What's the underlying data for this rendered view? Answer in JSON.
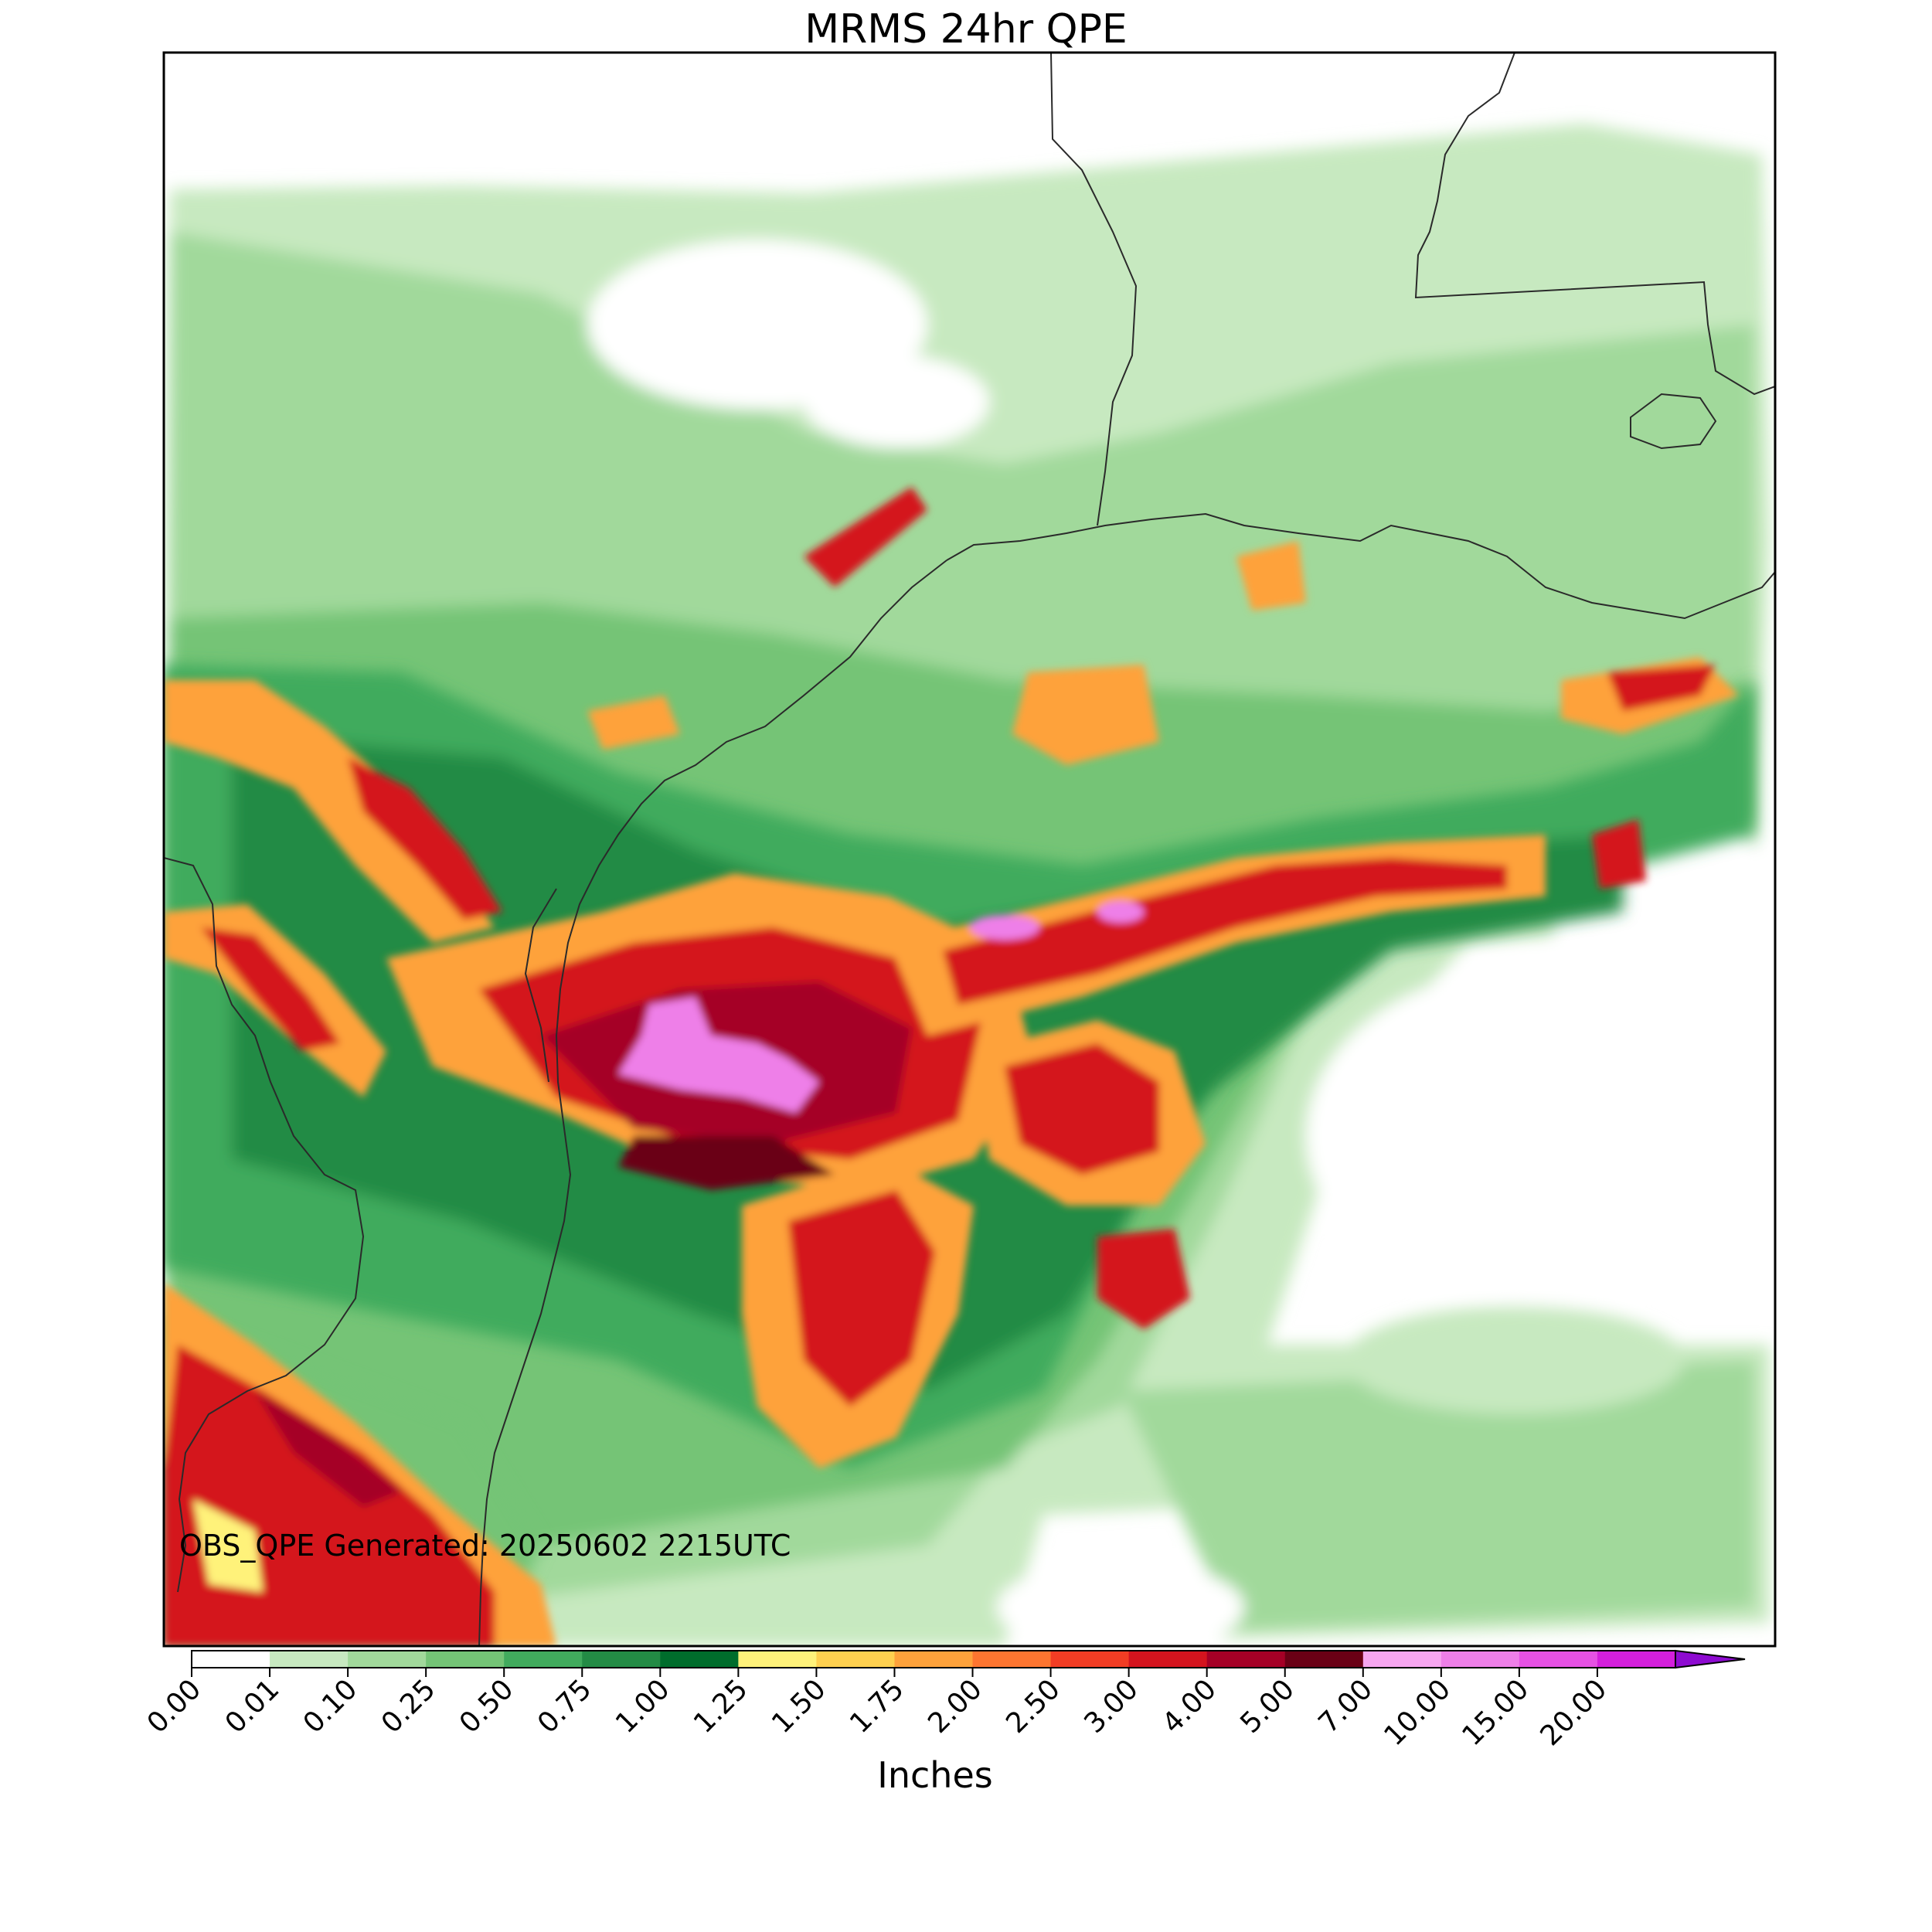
{
  "title": "MRMS 24hr QPE",
  "generated_stamp": "OBS_QPE Generated: 20250602 2215UTC",
  "colorbar": {
    "label": "Inches",
    "ticks": [
      "0.00",
      "0.01",
      "0.10",
      "0.25",
      "0.50",
      "0.75",
      "1.00",
      "1.25",
      "1.50",
      "1.75",
      "2.00",
      "2.50",
      "3.00",
      "4.00",
      "5.00",
      "7.00",
      "10.00",
      "15.00",
      "20.00"
    ],
    "colors": [
      "#ffffff",
      "#c7e9c0",
      "#a1d99b",
      "#74c476",
      "#41ab5d",
      "#238b45",
      "#006d2c",
      "#fff27a",
      "#ffd04f",
      "#fea23b",
      "#fd7530",
      "#f23d24",
      "#d4141e",
      "#a50026",
      "#6a0015",
      "#f7a6f0",
      "#ee7fe8",
      "#e651e4",
      "#d41fdc",
      "#8e0bd1"
    ],
    "extend": "max"
  },
  "colors": {
    "no_precip": "#ffffff",
    "light": "#c7e9c0",
    "moderate": "#41ab5d",
    "heavy": "#d4141e",
    "extreme": "#ee7fe8"
  }
}
